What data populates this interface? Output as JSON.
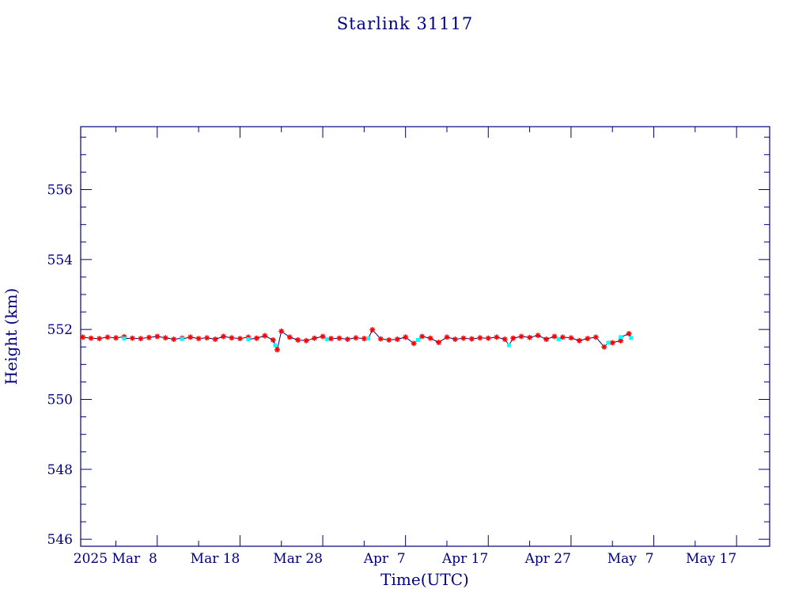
{
  "chart_data": {
    "type": "scatter",
    "title": "Starlink 31117",
    "xlabel": "Time(UTC)",
    "ylabel": "Height (km)",
    "xlim": [
      "2025-02-26T18:00",
      "2025-05-21T00:00"
    ],
    "ylim": [
      545.8,
      557.8
    ],
    "x_ticks": [
      {
        "date": "2025-03-08",
        "label": "2025 Mar  8"
      },
      {
        "date": "2025-03-18",
        "label": "Mar 18"
      },
      {
        "date": "2025-03-28",
        "label": "Mar 28"
      },
      {
        "date": "2025-04-07",
        "label": "Apr  7"
      },
      {
        "date": "2025-04-17",
        "label": "Apr 17"
      },
      {
        "date": "2025-04-27",
        "label": "Apr 27"
      },
      {
        "date": "2025-05-07",
        "label": "May  7"
      },
      {
        "date": "2025-05-17",
        "label": "May 17"
      }
    ],
    "y_ticks": [
      546,
      548,
      550,
      552,
      554,
      556
    ],
    "grid": false,
    "colors": {
      "frame": "#000080",
      "line": "#000080",
      "apogee_marker": "#ff0000",
      "perigee_marker": "#00ffff"
    },
    "series": [
      {
        "marker": "red-star",
        "points": [
          [
            "2025-02-27",
            551.78
          ],
          [
            "2025-02-28",
            551.75
          ],
          [
            "2025-03-01",
            551.74
          ],
          [
            "2025-03-02",
            551.78
          ],
          [
            "2025-03-03",
            551.76
          ],
          [
            "2025-03-04",
            551.79
          ],
          [
            "2025-03-05",
            551.75
          ],
          [
            "2025-03-06",
            551.74
          ],
          [
            "2025-03-07",
            551.77
          ],
          [
            "2025-03-08",
            551.8
          ],
          [
            "2025-03-09",
            551.76
          ],
          [
            "2025-03-10",
            551.72
          ],
          [
            "2025-03-11",
            551.75
          ],
          [
            "2025-03-12",
            551.78
          ],
          [
            "2025-03-13",
            551.74
          ],
          [
            "2025-03-14",
            551.76
          ],
          [
            "2025-03-15",
            551.72
          ],
          [
            "2025-03-16",
            551.8
          ],
          [
            "2025-03-17",
            551.76
          ],
          [
            "2025-03-18",
            551.74
          ],
          [
            "2025-03-19",
            551.78
          ],
          [
            "2025-03-20",
            551.75
          ],
          [
            "2025-03-21",
            551.82
          ],
          [
            "2025-03-22",
            551.7
          ],
          [
            "2025-03-22T12:00",
            551.42
          ],
          [
            "2025-03-23",
            551.95
          ],
          [
            "2025-03-24",
            551.78
          ],
          [
            "2025-03-25",
            551.7
          ],
          [
            "2025-03-26",
            551.68
          ],
          [
            "2025-03-27",
            551.75
          ],
          [
            "2025-03-28",
            551.8
          ],
          [
            "2025-03-29",
            551.74
          ],
          [
            "2025-03-30",
            551.75
          ],
          [
            "2025-03-31",
            551.72
          ],
          [
            "2025-04-01",
            551.76
          ],
          [
            "2025-04-02",
            551.74
          ],
          [
            "2025-04-03",
            551.99
          ],
          [
            "2025-04-04",
            551.73
          ],
          [
            "2025-04-05",
            551.7
          ],
          [
            "2025-04-06",
            551.72
          ],
          [
            "2025-04-07",
            551.78
          ],
          [
            "2025-04-08",
            551.6
          ],
          [
            "2025-04-09",
            551.8
          ],
          [
            "2025-04-10",
            551.75
          ],
          [
            "2025-04-11",
            551.63
          ],
          [
            "2025-04-12",
            551.78
          ],
          [
            "2025-04-13",
            551.72
          ],
          [
            "2025-04-14",
            551.75
          ],
          [
            "2025-04-15",
            551.73
          ],
          [
            "2025-04-16",
            551.76
          ],
          [
            "2025-04-17",
            551.75
          ],
          [
            "2025-04-18",
            551.78
          ],
          [
            "2025-04-19",
            551.72
          ],
          [
            "2025-04-20",
            551.75
          ],
          [
            "2025-04-21",
            551.8
          ],
          [
            "2025-04-22",
            551.77
          ],
          [
            "2025-04-23",
            551.83
          ],
          [
            "2025-04-24",
            551.72
          ],
          [
            "2025-04-25",
            551.8
          ],
          [
            "2025-04-26",
            551.78
          ],
          [
            "2025-04-27",
            551.76
          ],
          [
            "2025-04-28",
            551.68
          ],
          [
            "2025-04-29",
            551.74
          ],
          [
            "2025-04-30",
            551.78
          ],
          [
            "2025-05-01",
            551.5
          ],
          [
            "2025-05-02",
            551.62
          ],
          [
            "2025-05-03",
            551.68
          ],
          [
            "2025-05-04",
            551.88
          ]
        ]
      },
      {
        "marker": "cyan-square",
        "points": [
          [
            "2025-03-04",
            551.74
          ],
          [
            "2025-03-11",
            551.73
          ],
          [
            "2025-03-19",
            551.72
          ],
          [
            "2025-03-22T06:00",
            551.55
          ],
          [
            "2025-03-28T12:00",
            551.72
          ],
          [
            "2025-04-02T12:00",
            551.74
          ],
          [
            "2025-04-08T12:00",
            551.7
          ],
          [
            "2025-04-19T12:00",
            551.55
          ],
          [
            "2025-04-25T12:00",
            551.72
          ],
          [
            "2025-05-01T12:00",
            551.62
          ],
          [
            "2025-05-03",
            551.78
          ],
          [
            "2025-05-04T06:00",
            551.76
          ]
        ]
      }
    ]
  }
}
